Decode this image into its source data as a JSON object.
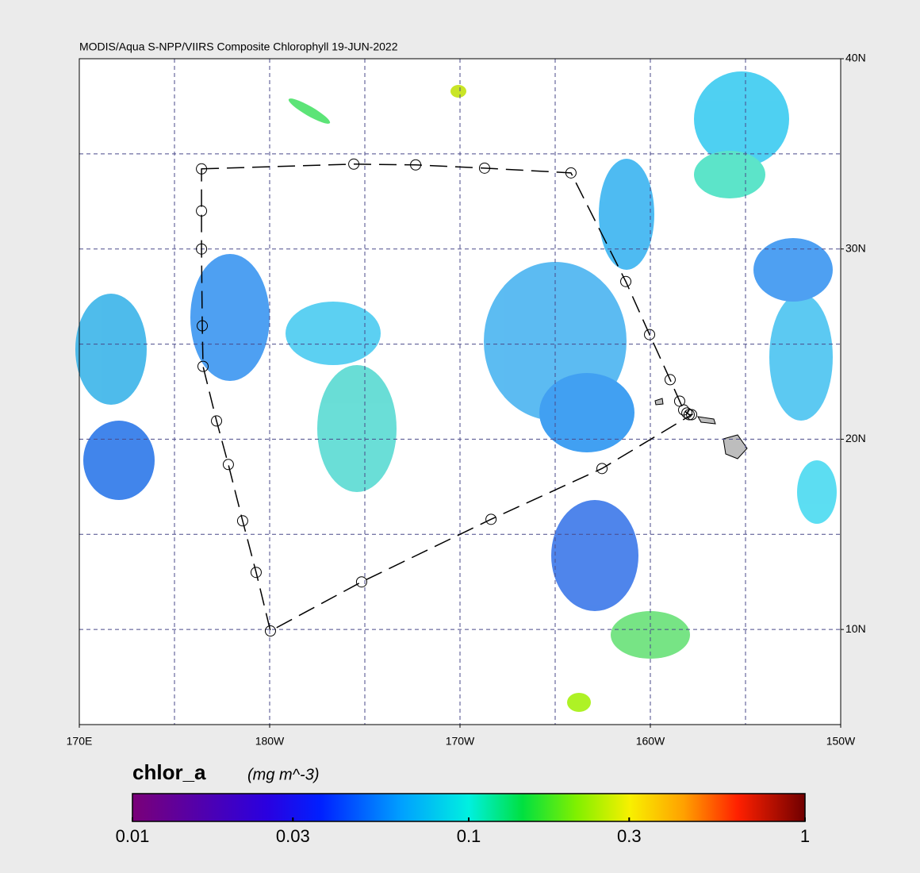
{
  "chart_data": {
    "type": "map",
    "title": "MODIS/Aqua S-NPP/VIIRS Composite Chlorophyll 19-JUN-2022",
    "xlim": [
      170,
      210
    ],
    "ylim": [
      5,
      40
    ],
    "xticks": [
      {
        "value": 170,
        "label": "170E"
      },
      {
        "value": 180,
        "label": "180W"
      },
      {
        "value": 190,
        "label": "170W"
      },
      {
        "value": 200,
        "label": "160W"
      },
      {
        "value": 210,
        "label": "150W"
      }
    ],
    "yticks": [
      {
        "value": 10,
        "label": "10N"
      },
      {
        "value": 20,
        "label": "20N"
      },
      {
        "value": 30,
        "label": "30N"
      },
      {
        "value": 40,
        "label": "40N"
      }
    ],
    "grid": true,
    "grid_x": [
      175,
      180,
      185,
      190,
      195,
      200,
      205
    ],
    "grid_y": [
      10,
      15,
      20,
      25,
      30,
      35
    ],
    "track": {
      "color": "#000000",
      "x": [
        176.42,
        184.42,
        187.67,
        191.29,
        195.83,
        198.71,
        199.96,
        201.04,
        201.54,
        201.75,
        201.92,
        202.04,
        202.17,
        197.46,
        191.63,
        184.83,
        180.04,
        179.29,
        178.58,
        177.83,
        177.21,
        176.5,
        176.46,
        176.42,
        176.42
      ],
      "y": [
        34.21,
        34.46,
        34.42,
        34.25,
        34.0,
        28.29,
        25.5,
        23.13,
        22.0,
        21.54,
        21.38,
        21.29,
        21.29,
        18.46,
        15.79,
        12.5,
        9.92,
        13.0,
        15.71,
        18.67,
        20.96,
        23.83,
        25.96,
        30.0,
        32.0
      ]
    },
    "colorbar": {
      "label": "chlor_a",
      "units": "(mg m^-3)",
      "lim": [
        0.01,
        1
      ],
      "ticks": [
        0.01,
        0.03,
        0.1,
        0.3,
        1
      ],
      "log": true
    }
  }
}
